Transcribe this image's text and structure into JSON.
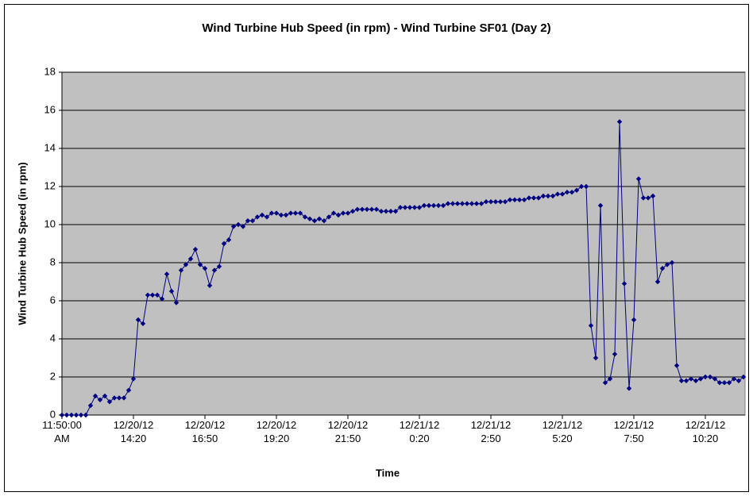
{
  "chart_data": {
    "type": "line",
    "title": "Wind Turbine Hub Speed (in rpm) - Wind Turbine SF01 (Day 2)",
    "x_label": "Time",
    "y_label": "Wind Turbine Hub Speed (in rpm)",
    "categories": [
      "11:50:00 AM",
      null,
      null,
      null,
      null,
      null,
      null,
      null,
      null,
      null,
      null,
      null,
      null,
      null,
      null,
      "12/20/12 14:20",
      null,
      null,
      null,
      null,
      null,
      null,
      null,
      null,
      null,
      null,
      null,
      null,
      null,
      null,
      "12/20/12 16:50",
      null,
      null,
      null,
      null,
      null,
      null,
      null,
      null,
      null,
      null,
      null,
      null,
      null,
      null,
      "12/20/12 19:20",
      null,
      null,
      null,
      null,
      null,
      null,
      null,
      null,
      null,
      null,
      null,
      null,
      null,
      null,
      "12/20/12 21:50",
      null,
      null,
      null,
      null,
      null,
      null,
      null,
      null,
      null,
      null,
      null,
      null,
      null,
      null,
      "12/21/12 0:20",
      null,
      null,
      null,
      null,
      null,
      null,
      null,
      null,
      null,
      null,
      null,
      null,
      null,
      null,
      "12/21/12 2:50",
      null,
      null,
      null,
      null,
      null,
      null,
      null,
      null,
      null,
      null,
      null,
      null,
      null,
      null,
      "12/21/12 5:20",
      null,
      null,
      null,
      null,
      null,
      null,
      null,
      null,
      null,
      null,
      null,
      null,
      null,
      null,
      "12/21/12 7:50",
      null,
      null,
      null,
      null,
      null,
      null,
      null,
      null,
      null,
      null,
      null,
      null,
      null,
      null,
      "12/21/12 10:20",
      null,
      null,
      null,
      null,
      null,
      null,
      null,
      null
    ],
    "values": [
      0,
      0,
      0,
      0,
      0,
      0,
      0.5,
      1.0,
      0.8,
      1.0,
      0.7,
      0.9,
      0.9,
      0.9,
      1.3,
      1.9,
      5.0,
      4.8,
      6.3,
      6.3,
      6.3,
      6.1,
      7.4,
      6.5,
      5.9,
      7.6,
      7.9,
      8.2,
      8.7,
      7.9,
      7.7,
      6.8,
      7.6,
      7.8,
      9.0,
      9.2,
      9.9,
      10.0,
      9.9,
      10.2,
      10.2,
      10.4,
      10.5,
      10.4,
      10.6,
      10.6,
      10.5,
      10.5,
      10.6,
      10.6,
      10.6,
      10.4,
      10.3,
      10.2,
      10.3,
      10.2,
      10.4,
      10.6,
      10.5,
      10.6,
      10.6,
      10.7,
      10.8,
      10.8,
      10.8,
      10.8,
      10.8,
      10.7,
      10.7,
      10.7,
      10.7,
      10.9,
      10.9,
      10.9,
      10.9,
      10.9,
      11.0,
      11.0,
      11.0,
      11.0,
      11.0,
      11.1,
      11.1,
      11.1,
      11.1,
      11.1,
      11.1,
      11.1,
      11.1,
      11.2,
      11.2,
      11.2,
      11.2,
      11.2,
      11.3,
      11.3,
      11.3,
      11.3,
      11.4,
      11.4,
      11.4,
      11.5,
      11.5,
      11.5,
      11.6,
      11.6,
      11.7,
      11.7,
      11.8,
      12.0,
      12.0,
      4.7,
      3.0,
      11.0,
      1.7,
      1.9,
      3.2,
      15.4,
      6.9,
      1.4,
      5.0,
      12.4,
      11.4,
      11.4,
      11.5,
      7.0,
      7.7,
      7.9,
      8.0,
      2.6,
      1.8,
      1.8,
      1.9,
      1.8,
      1.9,
      2.0,
      2.0,
      1.9,
      1.7,
      1.7,
      1.7,
      1.9,
      1.8,
      2.0
    ],
    "color": "#000080",
    "plot_background": "#c0c0c0",
    "ylim": [
      0,
      18
    ],
    "yticks": [
      0,
      2,
      4,
      6,
      8,
      10,
      12,
      14,
      16,
      18
    ],
    "grid": true
  }
}
